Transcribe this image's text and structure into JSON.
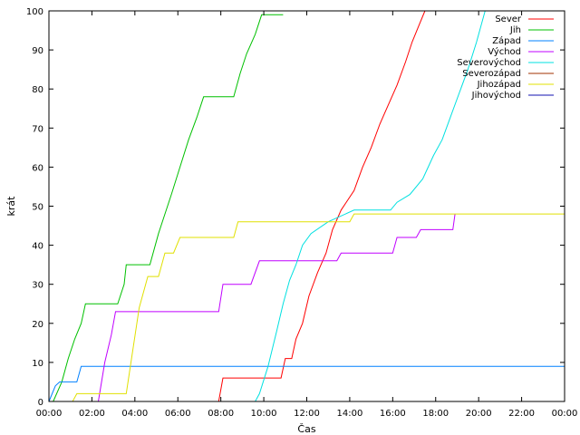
{
  "chart_data": {
    "type": "line",
    "title": "",
    "xlabel": "Čas",
    "ylabel": "krát",
    "xlim": [
      0,
      24
    ],
    "ylim": [
      0,
      100
    ],
    "x_unit": "hours",
    "x_ticks": [
      {
        "v": 0,
        "label": "00:00"
      },
      {
        "v": 2,
        "label": "02:00"
      },
      {
        "v": 4,
        "label": "04:00"
      },
      {
        "v": 6,
        "label": "06:00"
      },
      {
        "v": 8,
        "label": "08:00"
      },
      {
        "v": 10,
        "label": "10:00"
      },
      {
        "v": 12,
        "label": "12:00"
      },
      {
        "v": 14,
        "label": "14:00"
      },
      {
        "v": 16,
        "label": "16:00"
      },
      {
        "v": 18,
        "label": "18:00"
      },
      {
        "v": 20,
        "label": "20:00"
      },
      {
        "v": 22,
        "label": "22:00"
      },
      {
        "v": 24,
        "label": "00:00"
      }
    ],
    "y_ticks": [
      {
        "v": 0,
        "label": "0"
      },
      {
        "v": 10,
        "label": "10"
      },
      {
        "v": 20,
        "label": "20"
      },
      {
        "v": 30,
        "label": "30"
      },
      {
        "v": 40,
        "label": "40"
      },
      {
        "v": 50,
        "label": "50"
      },
      {
        "v": 60,
        "label": "60"
      },
      {
        "v": 70,
        "label": "70"
      },
      {
        "v": 80,
        "label": "80"
      },
      {
        "v": 90,
        "label": "90"
      },
      {
        "v": 100,
        "label": "100"
      }
    ],
    "grid": false,
    "legend_position": "top-right",
    "series": [
      {
        "name": "Sever",
        "color": "#ff0000",
        "points": [
          [
            7.9,
            0
          ],
          [
            8.1,
            6
          ],
          [
            10.8,
            6
          ],
          [
            11.0,
            11
          ],
          [
            11.3,
            11
          ],
          [
            11.5,
            16
          ],
          [
            11.8,
            20
          ],
          [
            12.1,
            27
          ],
          [
            12.5,
            33
          ],
          [
            12.9,
            38
          ],
          [
            13.2,
            44
          ],
          [
            13.6,
            49
          ],
          [
            14.2,
            54
          ],
          [
            14.6,
            60
          ],
          [
            15.0,
            65
          ],
          [
            15.4,
            71
          ],
          [
            15.8,
            76
          ],
          [
            16.2,
            81
          ],
          [
            16.6,
            87
          ],
          [
            16.9,
            92
          ],
          [
            17.2,
            96
          ],
          [
            17.5,
            100
          ]
        ]
      },
      {
        "name": "Jih",
        "color": "#00c000",
        "points": [
          [
            0.2,
            0
          ],
          [
            0.6,
            5
          ],
          [
            0.9,
            11
          ],
          [
            1.2,
            16
          ],
          [
            1.5,
            20
          ],
          [
            1.7,
            25
          ],
          [
            3.2,
            25
          ],
          [
            3.5,
            30
          ],
          [
            3.6,
            35
          ],
          [
            4.7,
            35
          ],
          [
            5.1,
            43
          ],
          [
            5.4,
            48
          ],
          [
            5.7,
            53
          ],
          [
            6.1,
            60
          ],
          [
            6.5,
            67
          ],
          [
            6.9,
            73
          ],
          [
            7.2,
            78
          ],
          [
            8.6,
            78
          ],
          [
            8.9,
            84
          ],
          [
            9.2,
            89
          ],
          [
            9.6,
            94
          ],
          [
            9.9,
            99
          ],
          [
            10.9,
            99
          ]
        ]
      },
      {
        "name": "Západ",
        "color": "#0080ff",
        "points": [
          [
            0,
            0
          ],
          [
            0.3,
            4
          ],
          [
            0.5,
            5
          ],
          [
            1.3,
            5
          ],
          [
            1.5,
            9
          ],
          [
            24,
            9
          ]
        ]
      },
      {
        "name": "Východ",
        "color": "#c000ff",
        "points": [
          [
            2.3,
            0
          ],
          [
            2.6,
            10
          ],
          [
            2.9,
            17
          ],
          [
            3.1,
            23
          ],
          [
            7.9,
            23
          ],
          [
            8.1,
            30
          ],
          [
            9.4,
            30
          ],
          [
            9.8,
            36
          ],
          [
            13.4,
            36
          ],
          [
            13.6,
            38
          ],
          [
            16.0,
            38
          ],
          [
            16.2,
            42
          ],
          [
            17.1,
            42
          ],
          [
            17.3,
            44
          ],
          [
            18.8,
            44
          ],
          [
            18.9,
            48
          ]
        ]
      },
      {
        "name": "Severovýchod",
        "color": "#00e0e0",
        "points": [
          [
            9.6,
            0
          ],
          [
            9.8,
            2
          ],
          [
            10.2,
            9
          ],
          [
            10.6,
            18
          ],
          [
            10.9,
            25
          ],
          [
            11.2,
            31
          ],
          [
            11.5,
            35
          ],
          [
            11.8,
            40
          ],
          [
            12.2,
            43
          ],
          [
            13.0,
            46
          ],
          [
            14.2,
            49
          ],
          [
            15.9,
            49
          ],
          [
            16.2,
            51
          ],
          [
            16.8,
            53
          ],
          [
            17.4,
            57
          ],
          [
            17.9,
            63
          ],
          [
            18.3,
            67
          ],
          [
            18.7,
            73
          ],
          [
            19.1,
            79
          ],
          [
            19.5,
            85
          ],
          [
            19.9,
            92
          ],
          [
            20.3,
            100
          ]
        ]
      },
      {
        "name": "Severozápad",
        "color": "#a03000",
        "points": []
      },
      {
        "name": "Jihozápad",
        "color": "#e0e000",
        "points": [
          [
            1.1,
            0
          ],
          [
            1.3,
            2
          ],
          [
            3.6,
            2
          ],
          [
            4.2,
            24
          ],
          [
            4.6,
            32
          ],
          [
            5.1,
            32
          ],
          [
            5.4,
            38
          ],
          [
            5.8,
            38
          ],
          [
            6.1,
            42
          ],
          [
            8.6,
            42
          ],
          [
            8.8,
            46
          ],
          [
            14.0,
            46
          ],
          [
            14.2,
            48
          ],
          [
            24,
            48
          ]
        ]
      },
      {
        "name": "Jihovýchod",
        "color": "#1010b0",
        "points": []
      }
    ]
  }
}
